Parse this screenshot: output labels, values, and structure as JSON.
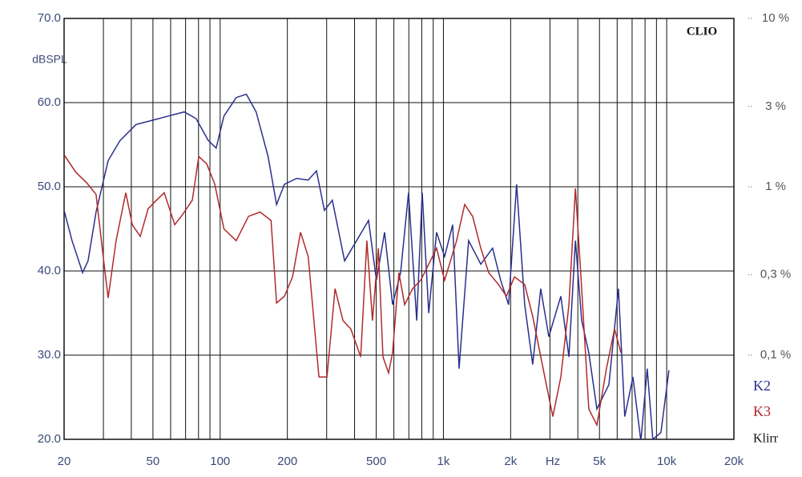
{
  "chart_data": {
    "type": "line",
    "brand": "CLIO",
    "y_label": "dBSPL",
    "x_label": "Hz",
    "legend_title": "Klirr",
    "x_scale": "log",
    "xlim": [
      20,
      20000
    ],
    "xticks": [
      20,
      50,
      100,
      200,
      500,
      {
        "value": 1000,
        "label": "1k"
      },
      {
        "value": 2000,
        "label": "2k"
      },
      {
        "value": 5000,
        "label": "5k"
      },
      {
        "value": 10000,
        "label": "10k"
      },
      {
        "value": 20000,
        "label": "20k"
      }
    ],
    "xgrid": [
      30,
      40,
      50,
      60,
      70,
      80,
      90,
      100,
      200,
      300,
      400,
      500,
      600,
      700,
      800,
      900,
      1000,
      2000,
      3000,
      4000,
      5000,
      6000,
      7000,
      8000,
      9000,
      10000
    ],
    "ylim": [
      20,
      70
    ],
    "yticks": [
      {
        "value": 20,
        "label": "20.0"
      },
      {
        "value": 30,
        "label": "30.0"
      },
      {
        "value": 40,
        "label": "40.0"
      },
      {
        "value": 50,
        "label": "50.0"
      },
      {
        "value": 60,
        "label": "60.0"
      },
      {
        "value": 70,
        "label": "70.0"
      }
    ],
    "y2_scale": "log",
    "y2lim": [
      0.0316,
      10
    ],
    "y2ticks": [
      {
        "value": 0.1,
        "label": "0,1 %"
      },
      {
        "value": 0.3,
        "label": "0,3 %"
      },
      {
        "value": 1,
        "label": "1 %"
      },
      {
        "value": 3,
        "label": "3 %"
      },
      {
        "value": 10,
        "label": "10 %"
      }
    ],
    "grid": true,
    "series": [
      {
        "name": "K2",
        "color": "#2a2f8c",
        "x": [
          20,
          21.7,
          24.2,
          25.6,
          27.8,
          31.5,
          35.6,
          42,
          49.6,
          58.5,
          69,
          78,
          88.5,
          96,
          104,
          118,
          131,
          145,
          164,
          179,
          194,
          220,
          248,
          270,
          293,
          318,
          361,
          408,
          462,
          501,
          545,
          592,
          643,
          698,
          759,
          804,
          859,
          932,
          1012,
          1100,
          1175,
          1297,
          1470,
          1660,
          1805,
          1959,
          2128,
          2312,
          2512,
          2729,
          2965,
          3357,
          3649,
          3900,
          4160,
          4480,
          4870,
          5510,
          6080,
          6490,
          7060,
          7660,
          8180,
          8670,
          9420,
          10230
        ],
        "values": [
          47.2,
          43.6,
          39.8,
          41.2,
          47.0,
          53.1,
          55.5,
          57.4,
          57.9,
          58.4,
          58.9,
          58.1,
          55.5,
          54.6,
          58.4,
          60.6,
          61.0,
          58.9,
          53.6,
          47.9,
          50.3,
          51.0,
          50.8,
          51.9,
          47.2,
          48.4,
          41.2,
          43.6,
          46.0,
          38.9,
          44.6,
          36.0,
          39.8,
          49.3,
          34.1,
          49.3,
          35.0,
          44.6,
          41.7,
          45.5,
          28.4,
          43.6,
          40.8,
          42.7,
          38.9,
          36.0,
          50.3,
          36.0,
          28.9,
          37.9,
          32.2,
          37.0,
          29.8,
          43.6,
          34.1,
          30.3,
          23.6,
          26.5,
          37.9,
          22.7,
          27.4,
          19.8,
          28.4,
          20.0,
          20.8,
          28.2
        ]
      },
      {
        "name": "K3",
        "color": "#b02a2a",
        "x": [
          20,
          22.6,
          25.2,
          27.8,
          30.2,
          31.5,
          34.2,
          37.8,
          40.4,
          43.9,
          47.6,
          51.8,
          56.2,
          62.6,
          67.9,
          75,
          80.2,
          87.1,
          94.6,
          104,
          118,
          134,
          151,
          169,
          179,
          194,
          211,
          229,
          248,
          277,
          301,
          327,
          355,
          385,
          426,
          454,
          481,
          511,
          536,
          568,
          592,
          632,
          670,
          728,
          791,
          859,
          932,
          1012,
          1146,
          1245,
          1352,
          1470,
          1596,
          1763,
          1915,
          2080,
          2312,
          2512,
          2845,
          3090,
          3357,
          3649,
          3900,
          4120,
          4480,
          4870,
          5370,
          5840,
          6240
        ],
        "values": [
          53.8,
          51.7,
          50.5,
          49.1,
          40.8,
          36.8,
          43.6,
          49.3,
          45.5,
          44.1,
          47.4,
          48.4,
          49.3,
          45.5,
          46.7,
          48.4,
          53.6,
          52.7,
          50.3,
          45.0,
          43.6,
          46.5,
          47.0,
          46.0,
          36.2,
          37.0,
          39.3,
          44.6,
          41.7,
          27.4,
          27.4,
          37.9,
          34.1,
          33.1,
          29.8,
          43.6,
          34.1,
          42.7,
          29.8,
          27.9,
          30.3,
          39.8,
          36.0,
          37.9,
          38.9,
          40.8,
          42.7,
          38.9,
          43.6,
          47.9,
          46.5,
          42.7,
          39.8,
          38.4,
          37.0,
          39.3,
          38.4,
          34.6,
          27.4,
          22.7,
          27.4,
          36.0,
          49.8,
          39.8,
          23.6,
          21.7,
          28.4,
          33.1,
          30.3
        ]
      }
    ]
  }
}
